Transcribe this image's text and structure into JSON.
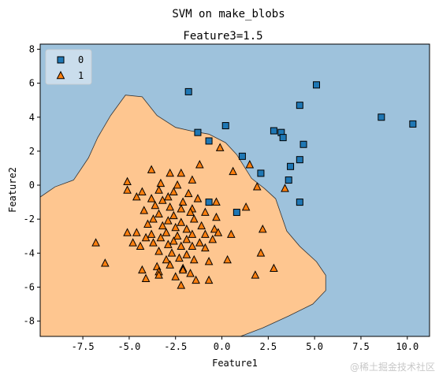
{
  "chart_data": {
    "type": "scatter",
    "suptitle": "SVM on make_blobs",
    "title": "Feature3=1.5",
    "xlabel": "Feature1",
    "ylabel": "Feature2",
    "xlim": [
      -9.8,
      11.2
    ],
    "ylim": [
      -8.9,
      8.3
    ],
    "xticks": [
      -7.5,
      -5.0,
      -2.5,
      0.0,
      2.5,
      5.0,
      7.5,
      10.0
    ],
    "xtick_labels": [
      "-7.5",
      "-5.0",
      "-2.5",
      "0.0",
      "2.5",
      "5.0",
      "7.5",
      "10.0"
    ],
    "yticks": [
      -8,
      -6,
      -4,
      -2,
      0,
      2,
      4,
      6,
      8
    ],
    "ytick_labels": [
      "-8",
      "-6",
      "-4",
      "-2",
      "0",
      "2",
      "4",
      "6",
      "8"
    ],
    "grid": false,
    "legend_position": "top-left",
    "background_colors": {
      "class_0": "#9ec2dc",
      "class_1": "#fec690"
    },
    "decision_boundary": [
      [
        -9.8,
        -0.7
      ],
      [
        -9.0,
        -0.1
      ],
      [
        -8.0,
        0.3
      ],
      [
        -7.2,
        1.6
      ],
      [
        -6.7,
        2.8
      ],
      [
        -6.0,
        4.1
      ],
      [
        -5.2,
        5.3
      ],
      [
        -4.3,
        5.2
      ],
      [
        -3.5,
        4.1
      ],
      [
        -2.5,
        3.4
      ],
      [
        -1.7,
        3.2
      ],
      [
        -0.7,
        3.0
      ],
      [
        0.2,
        2.5
      ],
      [
        0.8,
        1.8
      ],
      [
        1.6,
        0.4
      ],
      [
        2.3,
        -0.2
      ],
      [
        2.9,
        -0.8
      ],
      [
        3.5,
        -2.7
      ],
      [
        4.2,
        -3.6
      ],
      [
        5.1,
        -4.5
      ],
      [
        5.6,
        -5.3
      ],
      [
        5.6,
        -6.2
      ],
      [
        4.9,
        -7.0
      ],
      [
        3.6,
        -7.7
      ],
      [
        2.2,
        -8.4
      ],
      [
        1.0,
        -8.9
      ],
      [
        -9.8,
        -8.9
      ]
    ],
    "series": [
      {
        "name": "0",
        "marker": "square",
        "color": "#1f77b4",
        "points": [
          [
            -1.8,
            5.5
          ],
          [
            5.1,
            5.9
          ],
          [
            4.2,
            4.7
          ],
          [
            8.6,
            4.0
          ],
          [
            10.3,
            3.6
          ],
          [
            0.2,
            3.5
          ],
          [
            -1.3,
            3.1
          ],
          [
            2.8,
            3.2
          ],
          [
            3.2,
            3.1
          ],
          [
            3.3,
            2.8
          ],
          [
            -0.7,
            2.6
          ],
          [
            4.4,
            2.4
          ],
          [
            1.1,
            1.7
          ],
          [
            4.2,
            1.5
          ],
          [
            3.7,
            1.1
          ],
          [
            2.1,
            0.7
          ],
          [
            3.6,
            0.3
          ],
          [
            -0.7,
            -1.0
          ],
          [
            4.2,
            -1.0
          ],
          [
            0.8,
            -1.6
          ]
        ]
      },
      {
        "name": "1",
        "marker": "triangle",
        "color": "#ff7f0e",
        "points": [
          [
            -0.1,
            2.2
          ],
          [
            1.5,
            1.2
          ],
          [
            0.6,
            0.8
          ],
          [
            -1.2,
            1.2
          ],
          [
            -3.8,
            0.9
          ],
          [
            -2.8,
            0.7
          ],
          [
            -2.2,
            0.7
          ],
          [
            -5.1,
            0.2
          ],
          [
            -3.3,
            0.1
          ],
          [
            -1.6,
            0.3
          ],
          [
            -2.4,
            0.0
          ],
          [
            1.9,
            -0.1
          ],
          [
            3.4,
            -0.2
          ],
          [
            -5.1,
            -0.3
          ],
          [
            -4.3,
            -0.4
          ],
          [
            -3.4,
            -0.3
          ],
          [
            -2.6,
            -0.4
          ],
          [
            -1.8,
            -0.5
          ],
          [
            -4.6,
            -0.7
          ],
          [
            -3.8,
            -0.8
          ],
          [
            -3.2,
            -0.9
          ],
          [
            -2.9,
            -0.7
          ],
          [
            -2.1,
            -1.0
          ],
          [
            -1.3,
            -0.8
          ],
          [
            -0.3,
            -1.0
          ],
          [
            -3.6,
            -1.2
          ],
          [
            -2.8,
            -1.3
          ],
          [
            -2.2,
            -1.4
          ],
          [
            -1.6,
            -1.4
          ],
          [
            -4.2,
            -1.5
          ],
          [
            -3.4,
            -1.7
          ],
          [
            -2.6,
            -1.8
          ],
          [
            -1.7,
            -1.6
          ],
          [
            -0.9,
            -1.6
          ],
          [
            -0.3,
            -1.9
          ],
          [
            -3.7,
            -2.0
          ],
          [
            -2.9,
            -2.1
          ],
          [
            -2.2,
            -2.2
          ],
          [
            -1.5,
            -2.0
          ],
          [
            1.3,
            -1.3
          ],
          [
            -4.0,
            -2.3
          ],
          [
            -3.2,
            -2.4
          ],
          [
            -2.5,
            -2.5
          ],
          [
            -1.9,
            -2.6
          ],
          [
            -1.1,
            -2.4
          ],
          [
            -0.4,
            -2.6
          ],
          [
            -4.6,
            -2.8
          ],
          [
            -3.8,
            -2.9
          ],
          [
            -3.0,
            -2.8
          ],
          [
            -2.4,
            -3.0
          ],
          [
            -1.6,
            -2.9
          ],
          [
            -0.9,
            -2.9
          ],
          [
            -0.2,
            -2.8
          ],
          [
            0.5,
            -2.9
          ],
          [
            2.2,
            -2.6
          ],
          [
            -5.1,
            -2.8
          ],
          [
            -4.1,
            -3.1
          ],
          [
            -3.3,
            -3.1
          ],
          [
            -2.6,
            -3.3
          ],
          [
            -1.9,
            -3.2
          ],
          [
            -1.2,
            -3.4
          ],
          [
            -0.5,
            -3.2
          ],
          [
            -4.8,
            -3.4
          ],
          [
            -3.7,
            -3.4
          ],
          [
            -2.9,
            -3.5
          ],
          [
            -2.2,
            -3.6
          ],
          [
            -1.6,
            -3.6
          ],
          [
            -0.9,
            -3.7
          ],
          [
            -6.8,
            -3.4
          ],
          [
            -4.4,
            -3.6
          ],
          [
            -3.4,
            -3.9
          ],
          [
            -2.7,
            -4.0
          ],
          [
            -1.9,
            -4.1
          ],
          [
            2.1,
            -4.0
          ],
          [
            -3.0,
            -4.4
          ],
          [
            -2.3,
            -4.3
          ],
          [
            -1.5,
            -4.4
          ],
          [
            -0.7,
            -4.5
          ],
          [
            0.3,
            -4.4
          ],
          [
            -2.8,
            -4.7
          ],
          [
            -3.5,
            -4.8
          ],
          [
            -2.1,
            -4.9
          ],
          [
            -6.3,
            -4.6
          ],
          [
            -4.3,
            -5.0
          ],
          [
            -3.4,
            -5.1
          ],
          [
            -1.7,
            -5.2
          ],
          [
            -2.1,
            -5.0
          ],
          [
            2.8,
            -4.9
          ],
          [
            -4.1,
            -5.5
          ],
          [
            -2.5,
            -5.4
          ],
          [
            -1.4,
            -5.6
          ],
          [
            -3.4,
            -5.3
          ],
          [
            1.8,
            -5.3
          ],
          [
            -0.7,
            -5.6
          ],
          [
            -2.2,
            -5.9
          ]
        ]
      }
    ]
  },
  "watermark": "@稀土掘金技术社区"
}
